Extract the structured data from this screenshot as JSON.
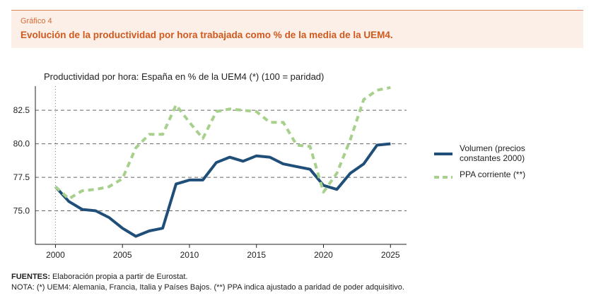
{
  "header": {
    "kicker": "Gráfico 4",
    "title": "Evolución de la productividad por hora trabajada como % de la media de la UEM4."
  },
  "footer": {
    "sources_label": "FUENTES:",
    "sources_text": " Elaboración propia a partir de Eurostat.",
    "note": "NOTA: (*) UEM4: Alemania, Francia, Italia y Países Bajos. (**) PPA indica ajustado a paridad de poder adquisitivo."
  },
  "chart_data": {
    "type": "line",
    "title": "Productividad por hora: España en % de la UEM4 (*) (100 = paridad)",
    "xlabel": "",
    "ylabel": "",
    "xlim": [
      1998.5,
      2026.2
    ],
    "ylim": [
      72.5,
      84.3
    ],
    "x_ticks": [
      2000,
      2005,
      2010,
      2015,
      2020,
      2025
    ],
    "y_ticks": [
      75.0,
      77.5,
      80.0,
      82.5
    ],
    "y_tick_labels": [
      "75.0",
      "77.5",
      "80.0",
      "82.5"
    ],
    "grid": "horizontal-dashed",
    "reference_line": {
      "x": 2000,
      "style": "dotted"
    },
    "legend_position": "right",
    "series": [
      {
        "name": "Volumen (precios constantes 2000)",
        "legend_lines": [
          "Volumen (precios",
          "constantes 2000)"
        ],
        "style": "solid",
        "color": "#1f4e79",
        "x": [
          2000,
          2001,
          2002,
          2003,
          2004,
          2005,
          2006,
          2007,
          2008,
          2009,
          2010,
          2011,
          2012,
          2013,
          2014,
          2015,
          2016,
          2017,
          2018,
          2019,
          2020,
          2021,
          2022,
          2023,
          2024,
          2025
        ],
        "values": [
          76.8,
          75.7,
          75.1,
          75.0,
          74.5,
          73.7,
          73.1,
          73.5,
          73.7,
          77.0,
          77.3,
          77.3,
          78.6,
          79.0,
          78.7,
          79.1,
          79.0,
          78.5,
          78.3,
          78.1,
          76.9,
          76.6,
          77.8,
          78.5,
          79.9,
          80.0
        ]
      },
      {
        "name": "PPA corriente (**)",
        "legend_lines": [
          "PPA corriente (**)"
        ],
        "style": "dashed",
        "color": "#a8d08d",
        "x": [
          2000,
          2001,
          2002,
          2003,
          2004,
          2005,
          2006,
          2007,
          2008,
          2009,
          2010,
          2011,
          2012,
          2013,
          2014,
          2015,
          2016,
          2017,
          2018,
          2019,
          2020,
          2021,
          2022,
          2023,
          2024,
          2025
        ],
        "values": [
          76.8,
          75.9,
          76.5,
          76.6,
          76.8,
          77.4,
          79.7,
          80.7,
          80.7,
          82.9,
          81.6,
          80.4,
          82.4,
          82.6,
          82.5,
          82.4,
          81.6,
          81.6,
          79.9,
          79.8,
          76.4,
          77.8,
          80.3,
          83.3,
          84.0,
          84.2
        ]
      }
    ]
  }
}
